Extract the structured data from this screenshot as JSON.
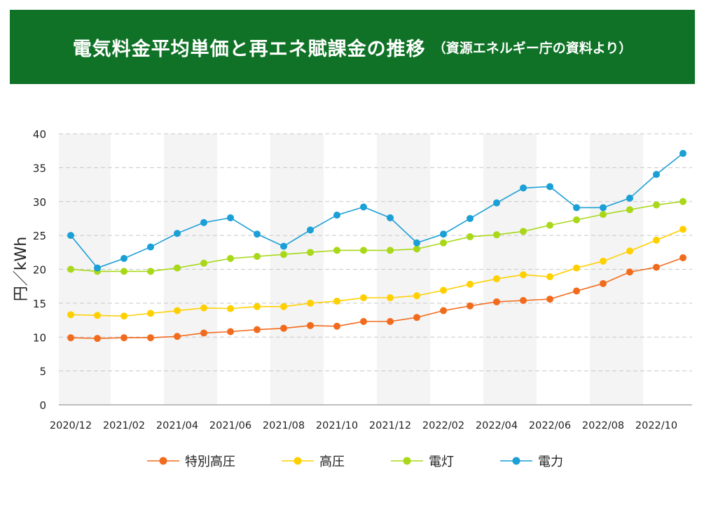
{
  "header": {
    "title": "電気料金平均単価と再エネ賦課金の推移",
    "source_note": "（資源エネルギー庁の資料より）"
  },
  "chart_data": {
    "type": "line",
    "ylabel": "円／kWh",
    "xlabel": "",
    "ylim": [
      0,
      40
    ],
    "yticks": [
      0,
      5,
      10,
      15,
      20,
      25,
      30,
      35,
      40
    ],
    "grid": true,
    "legend_position": "bottom",
    "x": [
      "2020/12",
      "2021/01",
      "2021/02",
      "2021/03",
      "2021/04",
      "2021/05",
      "2021/06",
      "2021/07",
      "2021/08",
      "2021/09",
      "2021/10",
      "2021/11",
      "2021/12",
      "2022/01",
      "2022/02",
      "2022/03",
      "2022/04",
      "2022/05",
      "2022/06",
      "2022/07",
      "2022/08",
      "2022/09",
      "2022/10",
      "2022/11"
    ],
    "x_tick_labels": [
      "2020/12",
      "2021/02",
      "2021/04",
      "2021/06",
      "2021/08",
      "2021/10",
      "2021/12",
      "2022/02",
      "2022/04",
      "2022/06",
      "2022/08",
      "2022/10"
    ],
    "series": [
      {
        "name": "特別高圧",
        "color": "#f26b1d",
        "values": [
          9.9,
          9.8,
          9.9,
          9.9,
          10.1,
          10.6,
          10.8,
          11.1,
          11.3,
          11.7,
          11.6,
          12.3,
          12.3,
          12.9,
          13.9,
          14.6,
          15.2,
          15.4,
          15.6,
          16.8,
          17.9,
          19.6,
          20.3,
          21.7
        ]
      },
      {
        "name": "高圧",
        "color": "#ffd000",
        "values": [
          13.3,
          13.2,
          13.1,
          13.5,
          13.9,
          14.3,
          14.2,
          14.5,
          14.5,
          15.0,
          15.3,
          15.8,
          15.8,
          16.1,
          16.9,
          17.8,
          18.6,
          19.2,
          18.9,
          20.2,
          21.2,
          22.7,
          24.3,
          25.9
        ]
      },
      {
        "name": "電灯",
        "color": "#a8d818",
        "values": [
          20.0,
          19.7,
          19.7,
          19.7,
          20.2,
          20.9,
          21.6,
          21.9,
          22.2,
          22.5,
          22.8,
          22.8,
          22.8,
          23.0,
          23.9,
          24.8,
          25.1,
          25.6,
          26.5,
          27.3,
          28.1,
          28.8,
          29.5,
          30.0
        ]
      },
      {
        "name": "電力",
        "color": "#1a9fd6",
        "values": [
          25.0,
          20.2,
          21.6,
          23.3,
          25.3,
          26.9,
          27.6,
          25.2,
          23.4,
          25.8,
          28.0,
          29.2,
          27.6,
          23.9,
          25.2,
          27.5,
          29.8,
          32.0,
          32.2,
          29.1,
          29.1,
          30.5,
          34.0,
          37.1
        ]
      }
    ]
  }
}
